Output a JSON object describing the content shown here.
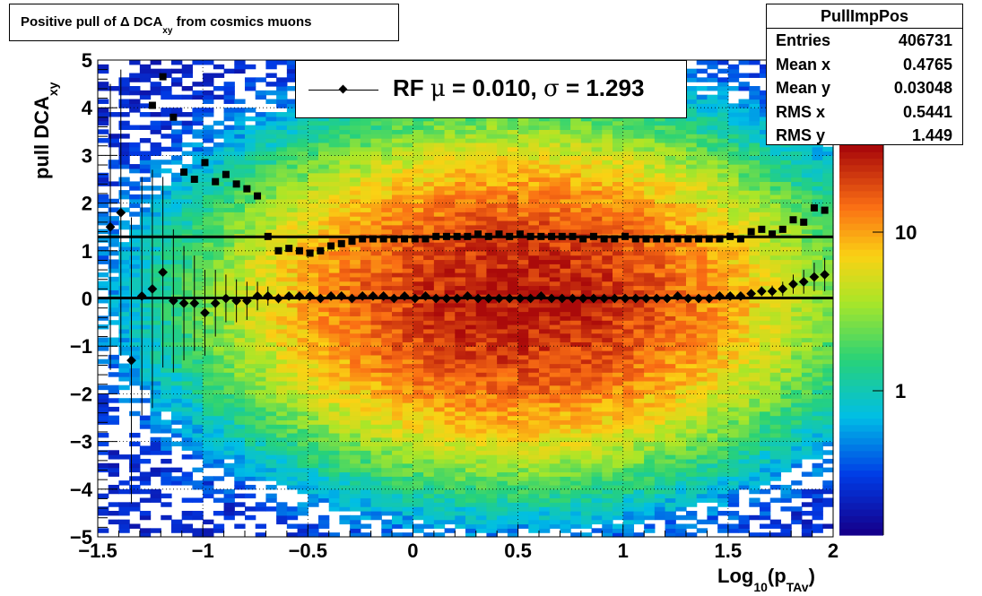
{
  "title": {
    "main": "Positive pull of Δ DCA",
    "sub": "xy",
    "rest": " from cosmics muons"
  },
  "axes": {
    "x_title": {
      "main": "Log",
      "sub": "10",
      "rest": "(p",
      "sub2": "TAv",
      "end": ")"
    },
    "y_title": {
      "main": "pull DCA",
      "sub": "xy"
    },
    "x_ticks": [
      "−1.5",
      "−1",
      "−0.5",
      "0",
      "0.5",
      "1",
      "1.5",
      "2"
    ],
    "y_ticks": [
      "−5",
      "−4",
      "−3",
      "−2",
      "−1",
      "0",
      "1",
      "2",
      "3",
      "4",
      "5"
    ],
    "z_ticks": [
      "1",
      "10"
    ]
  },
  "stats": {
    "name": "PullImpPos",
    "rows": [
      {
        "label": "Entries",
        "value": "406731"
      },
      {
        "label": "Mean x",
        "value": "0.4765"
      },
      {
        "label": "Mean y",
        "value": "0.03048"
      },
      {
        "label": "RMS x",
        "value": "0.5441"
      },
      {
        "label": "RMS y",
        "value": "1.449"
      }
    ]
  },
  "legend": {
    "label": "RF",
    "mu_symbol": "μ",
    "mu_text": " =  0.010, ",
    "sigma_symbol": "σ",
    "sigma_text": " =   1.293"
  },
  "chart_data": {
    "type": "heatmap",
    "xlim": [
      -1.5,
      2
    ],
    "ylim": [
      -5,
      5
    ],
    "z_scale": "log",
    "grid": true,
    "fit_lines": {
      "mean": 0.01,
      "sigma": 1.293
    },
    "series": [
      {
        "kind": "mean",
        "marker": "diamond",
        "x": [
          -1.44,
          -1.39,
          -1.34,
          -1.29,
          -1.24,
          -1.19,
          -1.14,
          -1.09,
          -1.04,
          -0.99,
          -0.94,
          -0.89,
          -0.84,
          -0.79,
          -0.74,
          -0.69,
          -0.64,
          -0.59,
          -0.54,
          -0.49,
          -0.44,
          -0.39,
          -0.34,
          -0.29,
          -0.24,
          -0.19,
          -0.14,
          -0.09,
          -0.04,
          0.01,
          0.06,
          0.11,
          0.16,
          0.21,
          0.26,
          0.31,
          0.36,
          0.41,
          0.46,
          0.51,
          0.56,
          0.61,
          0.66,
          0.71,
          0.76,
          0.81,
          0.86,
          0.91,
          0.96,
          1.01,
          1.06,
          1.11,
          1.16,
          1.21,
          1.26,
          1.31,
          1.36,
          1.41,
          1.46,
          1.51,
          1.56,
          1.61,
          1.66,
          1.71,
          1.76,
          1.81,
          1.86,
          1.91,
          1.96
        ],
        "y": [
          1.5,
          1.8,
          -1.3,
          0.05,
          0.2,
          0.55,
          -0.05,
          -0.1,
          -0.1,
          -0.3,
          -0.1,
          0.0,
          -0.05,
          -0.05,
          0.05,
          0.05,
          0.0,
          0.05,
          0.05,
          0.05,
          0.0,
          0.05,
          0.05,
          0.0,
          0.05,
          0.05,
          0.05,
          0.0,
          0.05,
          0.0,
          0.05,
          0.0,
          0.0,
          0.0,
          0.05,
          0.0,
          0.0,
          0.0,
          0.0,
          0.0,
          0.0,
          0.05,
          0.0,
          0.0,
          0.0,
          0.0,
          0.0,
          0.0,
          0.0,
          0.0,
          0.0,
          0.0,
          0.0,
          0.0,
          0.05,
          0.0,
          0.0,
          0.0,
          0.05,
          0.05,
          0.05,
          0.1,
          0.15,
          0.15,
          0.2,
          0.3,
          0.35,
          0.45,
          0.5
        ],
        "err": [
          3.0,
          3.0,
          3.0,
          2.5,
          2.5,
          2.0,
          1.5,
          1.2,
          1.0,
          0.9,
          0.7,
          0.5,
          0.45,
          0.4,
          0.3,
          0.2,
          0.1,
          0.05,
          0.05,
          0.05,
          0.03,
          0.03,
          0.03,
          0.02,
          0.02,
          0.02,
          0.02,
          0.02,
          0.02,
          0.02,
          0.02,
          0.02,
          0.02,
          0.02,
          0.02,
          0.02,
          0.02,
          0.02,
          0.02,
          0.02,
          0.02,
          0.02,
          0.02,
          0.02,
          0.02,
          0.02,
          0.02,
          0.02,
          0.02,
          0.02,
          0.02,
          0.02,
          0.02,
          0.03,
          0.03,
          0.03,
          0.04,
          0.05,
          0.05,
          0.06,
          0.07,
          0.08,
          0.1,
          0.12,
          0.15,
          0.2,
          0.25,
          0.3,
          0.35
        ]
      },
      {
        "kind": "sigma",
        "marker": "square",
        "x": [
          -1.24,
          -1.19,
          -1.14,
          -1.09,
          -1.04,
          -0.99,
          -0.94,
          -0.89,
          -0.84,
          -0.79,
          -0.74,
          -0.69,
          -0.64,
          -0.59,
          -0.54,
          -0.49,
          -0.44,
          -0.39,
          -0.34,
          -0.29,
          -0.24,
          -0.19,
          -0.14,
          -0.09,
          -0.04,
          0.01,
          0.06,
          0.11,
          0.16,
          0.21,
          0.26,
          0.31,
          0.36,
          0.41,
          0.46,
          0.51,
          0.56,
          0.61,
          0.66,
          0.71,
          0.76,
          0.81,
          0.86,
          0.91,
          0.96,
          1.01,
          1.06,
          1.11,
          1.16,
          1.21,
          1.26,
          1.31,
          1.36,
          1.41,
          1.46,
          1.51,
          1.56,
          1.61,
          1.66,
          1.71,
          1.76,
          1.81,
          1.86,
          1.91,
          1.96
        ],
        "y": [
          4.05,
          4.65,
          3.8,
          2.65,
          2.5,
          2.85,
          2.45,
          2.6,
          2.4,
          2.3,
          2.15,
          1.3,
          1.0,
          1.05,
          1.0,
          0.95,
          1.0,
          1.1,
          1.15,
          1.2,
          1.25,
          1.25,
          1.25,
          1.25,
          1.25,
          1.25,
          1.25,
          1.3,
          1.3,
          1.3,
          1.3,
          1.35,
          1.3,
          1.35,
          1.3,
          1.35,
          1.3,
          1.3,
          1.3,
          1.3,
          1.3,
          1.25,
          1.3,
          1.25,
          1.25,
          1.3,
          1.25,
          1.25,
          1.25,
          1.25,
          1.25,
          1.25,
          1.25,
          1.25,
          1.25,
          1.3,
          1.25,
          1.4,
          1.45,
          1.35,
          1.45,
          1.65,
          1.6,
          1.9,
          1.85
        ]
      }
    ]
  }
}
